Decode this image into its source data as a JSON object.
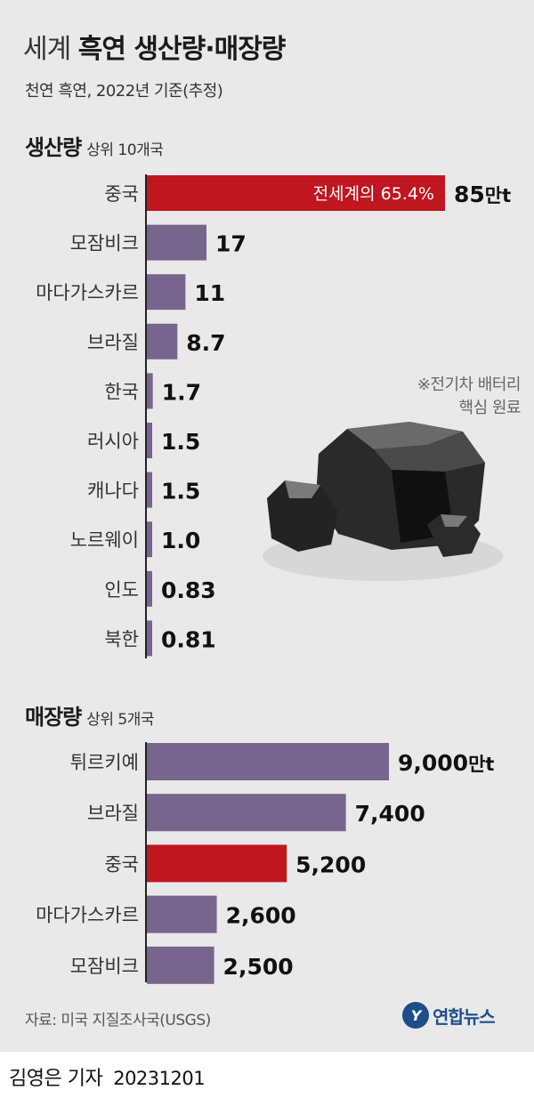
{
  "title_light": "세계",
  "title_bold": "흑연 생산량·매장량",
  "subtitle": "천연 흑연, 2022년 기준(추정)",
  "note_line1": "※전기차 배터리",
  "note_line2": "핵심 원료",
  "source": "자료: 미국 지질조사국(USGS)",
  "brand": "연합뉴스",
  "reporter": "김영은 기자",
  "date": "20231201",
  "colors": {
    "bar": "#76658c",
    "highlight": "#c0161f",
    "background": "#e9e9e9"
  },
  "chart_data": [
    {
      "type": "bar",
      "orientation": "horizontal",
      "title": "생산량",
      "subtitle": "상위 10개국",
      "unit": "만t",
      "categories": [
        "중국",
        "모잠비크",
        "마다가스카르",
        "브라질",
        "한국",
        "러시아",
        "캐나다",
        "노르웨이",
        "인도",
        "북한"
      ],
      "values": [
        85,
        17,
        11,
        8.7,
        1.7,
        1.5,
        1.5,
        1.0,
        0.83,
        0.81
      ],
      "value_labels": [
        "85만t",
        "17",
        "11",
        "8.7",
        "1.7",
        "1.5",
        "1.5",
        "1.0",
        "0.83",
        "0.81"
      ],
      "highlight_index": 0,
      "annotation": "전세계의 65.4%"
    },
    {
      "type": "bar",
      "orientation": "horizontal",
      "title": "매장량",
      "subtitle": "상위 5개국",
      "unit": "만t",
      "categories": [
        "튀르키예",
        "브라질",
        "중국",
        "마다가스카르",
        "모잠비크"
      ],
      "values": [
        9000,
        7400,
        5200,
        2600,
        2500
      ],
      "value_labels": [
        "9,000만t",
        "7,400",
        "5,200",
        "2,600",
        "2,500"
      ],
      "highlight_index": 2
    }
  ]
}
